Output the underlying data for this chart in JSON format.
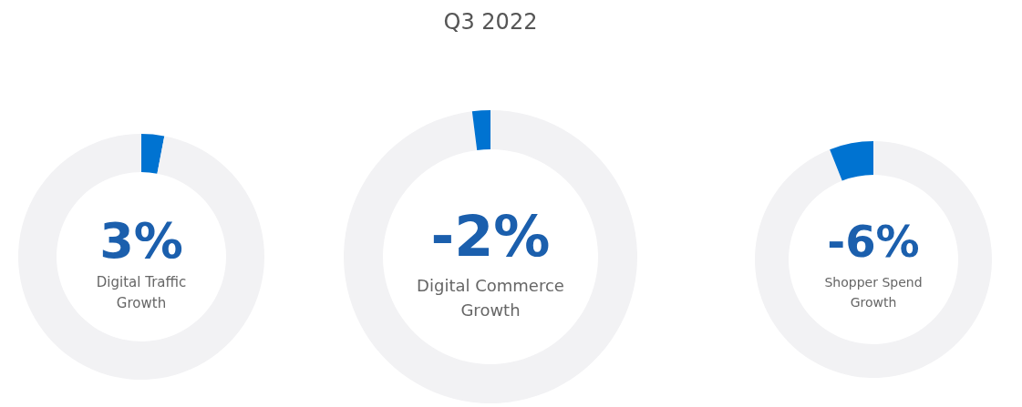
{
  "chart_data": [
    {
      "type": "donut",
      "categories": [
        null,
        null
      ],
      "values": [
        3,
        97
      ],
      "colors": [
        "#0073d1",
        "#f2f2f4"
      ],
      "annotations": [
        "3%",
        "Digital Traffic\nGrowth"
      ]
    },
    {
      "type": "donut",
      "title": "Q3 2022",
      "categories": [
        null,
        null
      ],
      "values": [
        98,
        2
      ],
      "colors": [
        "#f2f2f4",
        "#0073d1"
      ],
      "annotations": [
        "-2%",
        "Digital Commerce\nGrowth"
      ]
    },
    {
      "type": "donut",
      "categories": [
        null,
        null
      ],
      "values": [
        94,
        6
      ],
      "colors": [
        "#f2f2f4",
        "#0073d1"
      ],
      "annotations": [
        "-6%",
        "Shopper Spend\nGrowth"
      ]
    }
  ]
}
